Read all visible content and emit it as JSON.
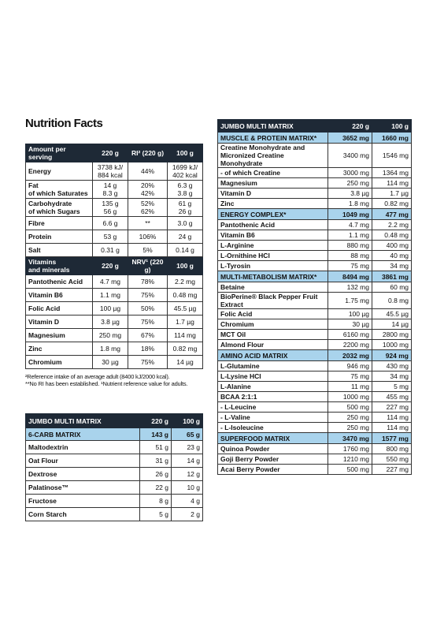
{
  "title": "Nutrition Facts",
  "nutrition": {
    "sections": [
      {
        "header": [
          "Amount per\nserving",
          "220 g",
          "RI² (220 g)",
          "100 g"
        ],
        "rows": [
          [
            "Energy",
            "3738 kJ/\n884 kcal",
            "44%",
            "1699 kJ/\n402 kcal"
          ],
          [
            "Fat\nof which Saturates",
            "14 g\n8.3 g",
            "20%\n42%",
            "6.3 g\n3.8 g"
          ],
          [
            "Carbohydrate\nof which Sugars",
            "135 g\n56 g",
            "52%\n62%",
            "61 g\n26 g"
          ],
          [
            "Fibre",
            "6.6 g",
            "**",
            "3.0 g"
          ],
          [
            "Protein",
            "53 g",
            "106%",
            "24 g"
          ],
          [
            "Salt",
            "0.31 g",
            "5%",
            "0.14 g"
          ]
        ]
      },
      {
        "header": [
          "Vitamins\nand minerals",
          "220 g",
          "NRV¹ (220 g)",
          "100 g"
        ],
        "rows": [
          [
            "Pantothenic Acid",
            "4.7 mg",
            "78%",
            "2.2 mg"
          ],
          [
            "Vitamin B6",
            "1.1 mg",
            "75%",
            "0.48 mg"
          ],
          [
            "Folic Acid",
            "100 µg",
            "50%",
            "45.5 µg"
          ],
          [
            "Vitamin D",
            "3.8 µg",
            "75%",
            "1.7 µg"
          ],
          [
            "Magnesium",
            "250 mg",
            "67%",
            "114 mg"
          ],
          [
            "Zinc",
            "1.8 mg",
            "18%",
            "0.82 mg"
          ],
          [
            "Chromium",
            "30 µg",
            "75%",
            "14 µg"
          ]
        ]
      }
    ]
  },
  "footnotes": [
    "²Reference intake of an average adult (8400 kJ/2000 kcal).",
    "**No RI has been established. ¹Nutrient reference value for adults."
  ],
  "carb_matrix": {
    "sections": [
      {
        "header": [
          "JUMBO MULTI MATRIX",
          "220 g",
          "100 g"
        ]
      },
      {
        "title": [
          "6-CARB MATRIX",
          "143 g",
          "65 g"
        ],
        "rows": [
          [
            "Maltodextrin",
            "51 g",
            "23 g"
          ],
          [
            "Oat Flour",
            "31 g",
            "14 g"
          ],
          [
            "Dextrose",
            "26 g",
            "12 g"
          ],
          [
            "Palatinose™",
            "22 g",
            "10 g"
          ],
          [
            "Fructose",
            "8 g",
            "4 g"
          ],
          [
            "Corn Starch",
            "5 g",
            "2 g"
          ]
        ]
      }
    ]
  },
  "multi_matrix": {
    "sections": [
      {
        "header": [
          "JUMBO MULTI MATRIX",
          "220 g",
          "100 g"
        ]
      },
      {
        "title": [
          "MUSCLE & PROTEIN MATRIX*",
          "3652 mg",
          "1660 mg"
        ],
        "rows": [
          [
            "Creatine Monohydrate and\nMicronized Creatine Monohydrate",
            "3400 mg",
            "1546 mg"
          ],
          [
            "- of which Creatine",
            "3000 mg",
            "1364 mg"
          ],
          [
            "Magnesium",
            "250 mg",
            "114 mg"
          ],
          [
            "Vitamin D",
            "3.8 µg",
            "1.7 µg"
          ],
          [
            "Zinc",
            "1.8 mg",
            "0.82 mg"
          ]
        ]
      },
      {
        "title": [
          "ENERGY COMPLEX*",
          "1049 mg",
          "477 mg"
        ],
        "rows": [
          [
            "Pantothenic Acid",
            "4.7 mg",
            "2.2 mg"
          ],
          [
            "Vitamin B6",
            "1.1 mg",
            "0.48 mg"
          ],
          [
            "L-Arginine",
            "880 mg",
            "400 mg"
          ],
          [
            "L-Ornithine HCl",
            "88 mg",
            "40 mg"
          ],
          [
            "L-Tyrosin",
            "75 mg",
            "34 mg"
          ]
        ]
      },
      {
        "title": [
          "MULTI-METABOLISM MATRIX*",
          "8494 mg",
          "3861 mg"
        ],
        "rows": [
          [
            "Betaine",
            "132 mg",
            "60 mg"
          ],
          [
            "BioPerine® Black Pepper Fruit Extract",
            "1.75 mg",
            "0.8 mg"
          ],
          [
            "Folic Acid",
            "100 µg",
            "45.5 µg"
          ],
          [
            "Chromium",
            "30 µg",
            "14 µg"
          ],
          [
            "MCT Oil",
            "6160 mg",
            "2800 mg"
          ],
          [
            "Almond Flour",
            "2200 mg",
            "1000 mg"
          ]
        ]
      },
      {
        "title": [
          "AMINO ACID MATRIX",
          "2032 mg",
          "924 mg"
        ],
        "rows": [
          [
            "L-Glutamine",
            "946 mg",
            "430 mg"
          ],
          [
            "L-Lysine HCl",
            "75 mg",
            "34 mg"
          ],
          [
            "L-Alanine",
            "11 mg",
            "5 mg"
          ],
          [
            "BCAA 2:1:1",
            "1000 mg",
            "455 mg"
          ],
          [
            "- L-Leucine",
            "500 mg",
            "227 mg"
          ],
          [
            "- L-Valine",
            "250 mg",
            "114 mg"
          ],
          [
            "- L-Isoleucine",
            "250 mg",
            "114 mg"
          ]
        ]
      },
      {
        "title": [
          "SUPERFOOD MATRIX",
          "3470 mg",
          "1577 mg"
        ],
        "rows": [
          [
            "Quinoa Powder",
            "1760 mg",
            "800 mg"
          ],
          [
            "Goji Berry Powder",
            "1210 mg",
            "550 mg"
          ],
          [
            "Acai Berry Powder",
            "500 mg",
            "227 mg"
          ]
        ]
      }
    ]
  }
}
